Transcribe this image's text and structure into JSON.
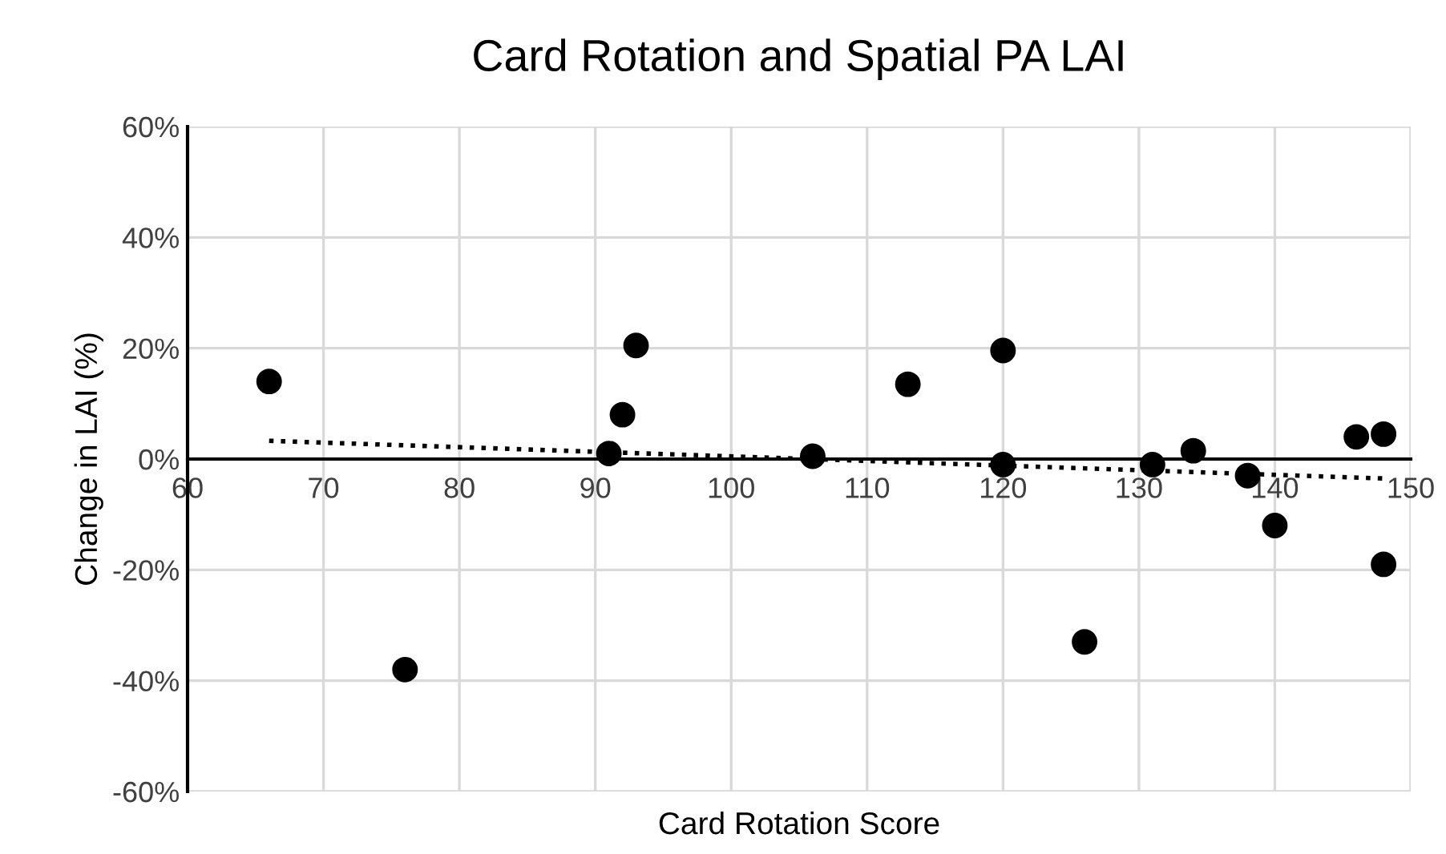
{
  "chart_data": {
    "type": "scatter",
    "title": "Card Rotation and Spatial PA LAI",
    "xlabel": "Card Rotation Score",
    "ylabel": "Change in LAI (%)",
    "xlim": [
      60,
      150
    ],
    "xticks": [
      60,
      70,
      80,
      90,
      100,
      110,
      120,
      130,
      140,
      150
    ],
    "ylim": [
      -60,
      60
    ],
    "yticks": [
      {
        "value": -60,
        "label": "-60%"
      },
      {
        "value": -40,
        "label": "-40%"
      },
      {
        "value": -20,
        "label": "-20%"
      },
      {
        "value": 0,
        "label": "0%"
      },
      {
        "value": 20,
        "label": "20%"
      },
      {
        "value": 40,
        "label": "40%"
      },
      {
        "value": 60,
        "label": "60%"
      }
    ],
    "grid": true,
    "marker": "circle",
    "series": [
      {
        "color": "#000000",
        "x": [
          66,
          76,
          91,
          92,
          93,
          106,
          113,
          120,
          120,
          126,
          131,
          134,
          138,
          140,
          146,
          148,
          148
        ],
        "values": [
          14,
          -38,
          1,
          8,
          20.5,
          0.5,
          13.5,
          19.6,
          -1,
          -33,
          -1,
          1.5,
          -3,
          -12,
          4,
          4.5,
          -19
        ]
      },
      {
        "type": "line",
        "color": "#000000",
        "line_style": "dotted",
        "marker": "none",
        "x": [
          66,
          148
        ],
        "values": [
          3.3,
          -3.5
        ]
      }
    ]
  }
}
